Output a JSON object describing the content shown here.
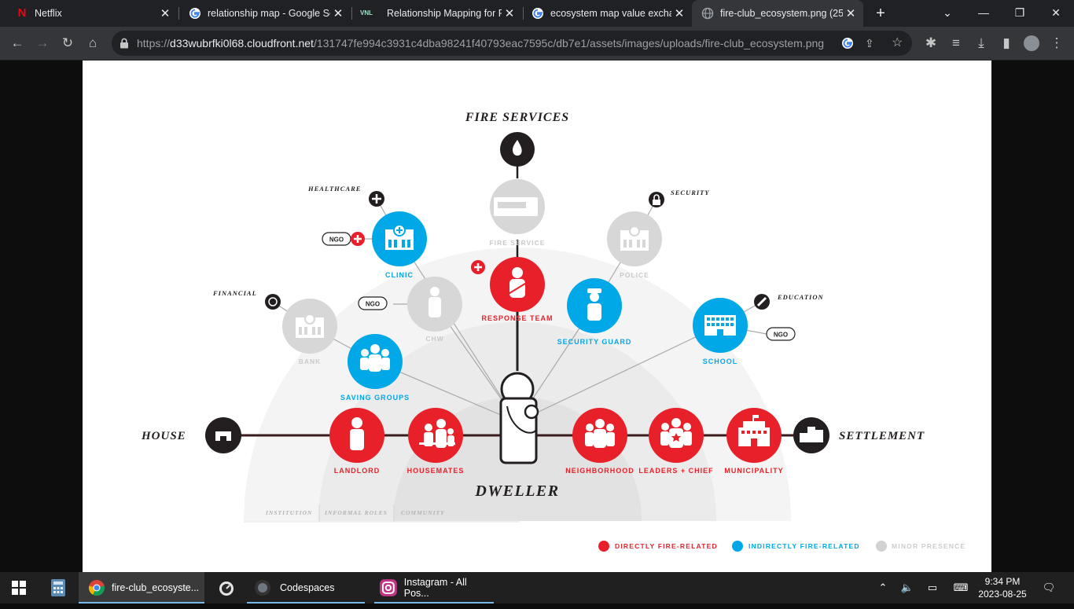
{
  "tabs": [
    {
      "title": "Netflix",
      "icon": "netflix-icon"
    },
    {
      "title": "relationship map - Google Se",
      "icon": "google-icon"
    },
    {
      "title": "Relationship Mapping for Pul",
      "icon": "vnl-icon",
      "badge": "VNL"
    },
    {
      "title": "ecosystem map value exchar",
      "icon": "google-icon"
    },
    {
      "title": "fire-club_ecosystem.png (255",
      "icon": "globe-icon",
      "active": true
    }
  ],
  "address": {
    "scheme": "https://",
    "host": "d33wubrfki0l68.cloudfront.net",
    "path": "/131747fe994c3931c4dba98241f40793eac7595c/db7e1/assets/images/uploads/fire-club_ecosystem.png"
  },
  "diagram": {
    "colors": {
      "direct": "#e8202a",
      "indirect": "#00a8e8",
      "minor": "#d2d2d2",
      "dark": "#231f20",
      "line": "#3a1c1c"
    },
    "title_top": "FIRE SERVICES",
    "left_end": "HOUSE",
    "right_end": "SETTLEMENT",
    "center": "DWELLER",
    "categories": {
      "healthcare": "HEALTHCARE",
      "security": "SECURITY",
      "financial": "FINANCIAL",
      "education": "EDUCATION"
    },
    "ngo": "NGO",
    "nodes": {
      "fire_service": "FIRE SERVICE",
      "clinic": "CLINIC",
      "police": "POLICE",
      "response_team": "RESPONSE TEAM",
      "chw": "CHW",
      "bank": "BANK",
      "security_guard": "SECURITY GUARD",
      "school": "SCHOOL",
      "saving_groups": "SAVING GROUPS",
      "landlord": "LANDLORD",
      "housemates": "HOUSEMATES",
      "neighborhood": "NEIGHBORHOOD",
      "leaders_chief": "LEADERS + CHIEF",
      "municipality": "MUNICIPALITY"
    },
    "rings": {
      "institution": "INSTITUTION",
      "informal": "INFORMAL ROLES",
      "community": "COMMUNITY"
    },
    "legend": {
      "direct": "DIRECTLY FIRE-RELATED",
      "indirect": "INDIRECTLY FIRE-RELATED",
      "minor": "MINOR PRESENCE"
    }
  },
  "taskbar": {
    "apps": [
      {
        "label": "fire-club_ecosyste...",
        "icon": "chrome-icon",
        "active": true
      },
      {
        "label": "Codespaces",
        "icon": "codespaces-icon"
      },
      {
        "label": "Instagram - All Pos...",
        "icon": "instagram-icon"
      }
    ],
    "time": "9:34 PM",
    "date": "2023-08-25"
  }
}
